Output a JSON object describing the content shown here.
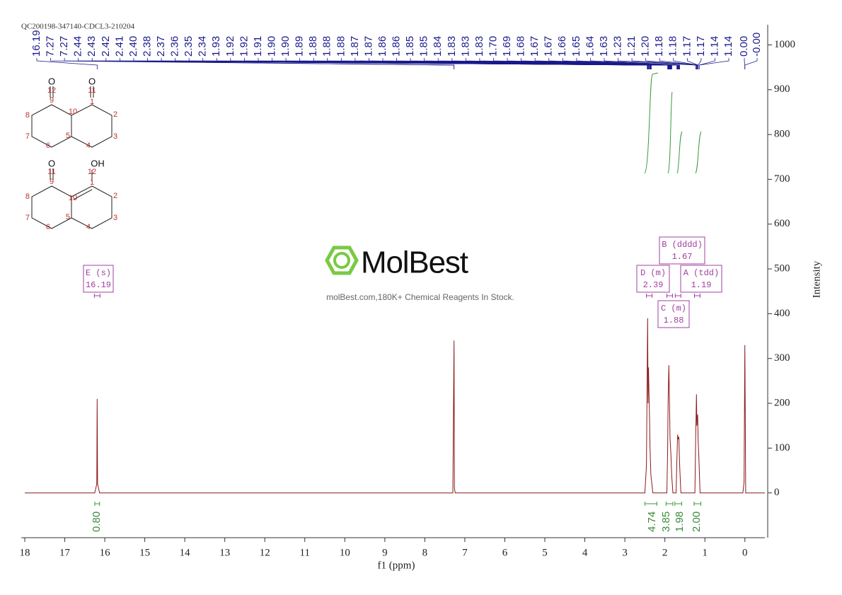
{
  "chart_data": {
    "type": "line",
    "title": "QC200198-347140-CDCL3-210204",
    "x_label": "f1 (ppm)",
    "y_label": "Intensity",
    "xlim": [
      18,
      -0.5
    ],
    "xticks": [
      18,
      17,
      16,
      15,
      14,
      13,
      12,
      11,
      10,
      9,
      8,
      7,
      6,
      5,
      4,
      3,
      2,
      1,
      0
    ],
    "ylim": [
      -100,
      1045
    ],
    "yticks": [
      0,
      100,
      200,
      300,
      400,
      500,
      600,
      700,
      800,
      900,
      1000
    ],
    "series": [
      {
        "name": "spectrum",
        "color": "#8b1a1a",
        "x": [
          18,
          16.25,
          16.2,
          16.19,
          16.18,
          16.13,
          7.3,
          7.27,
          7.26,
          7.24,
          2.5,
          2.46,
          2.44,
          2.43,
          2.42,
          2.41,
          2.4,
          2.38,
          2.37,
          2.35,
          2.3,
          1.95,
          1.93,
          1.92,
          1.9,
          1.88,
          1.87,
          1.85,
          1.83,
          1.8,
          1.72,
          1.7,
          1.68,
          1.67,
          1.65,
          1.63,
          1.6,
          1.25,
          1.23,
          1.21,
          1.2,
          1.18,
          1.17,
          1.15,
          1.12,
          0.05,
          0.02,
          0.0,
          -0.02,
          -0.5
        ],
        "values": [
          0,
          0,
          20,
          210,
          20,
          0,
          0,
          340,
          10,
          0,
          0,
          60,
          290,
          390,
          200,
          280,
          240,
          150,
          100,
          40,
          0,
          0,
          100,
          200,
          285,
          180,
          120,
          90,
          40,
          0,
          0,
          70,
          130,
          120,
          125,
          60,
          0,
          0,
          120,
          220,
          150,
          175,
          120,
          80,
          0,
          0,
          25,
          330,
          0,
          0
        ]
      }
    ],
    "peak_labels": [
      {
        "value": 16.19,
        "label": "16.19"
      },
      {
        "value": 7.27,
        "label": "7.27"
      },
      {
        "value": 7.27,
        "label": "7.27"
      },
      {
        "value": 2.44,
        "label": "2.44"
      },
      {
        "value": 2.43,
        "label": "2.43"
      },
      {
        "value": 2.42,
        "label": "2.42"
      },
      {
        "value": 2.41,
        "label": "2.41"
      },
      {
        "value": 2.4,
        "label": "2.40"
      },
      {
        "value": 2.38,
        "label": "2.38"
      },
      {
        "value": 2.37,
        "label": "2.37"
      },
      {
        "value": 2.36,
        "label": "2.36"
      },
      {
        "value": 2.35,
        "label": "2.35"
      },
      {
        "value": 2.34,
        "label": "2.34"
      },
      {
        "value": 1.93,
        "label": "1.93"
      },
      {
        "value": 1.92,
        "label": "1.92"
      },
      {
        "value": 1.92,
        "label": "1.92"
      },
      {
        "value": 1.91,
        "label": "1.91"
      },
      {
        "value": 1.9,
        "label": "1.90"
      },
      {
        "value": 1.9,
        "label": "1.90"
      },
      {
        "value": 1.89,
        "label": "1.89"
      },
      {
        "value": 1.88,
        "label": "1.88"
      },
      {
        "value": 1.88,
        "label": "1.88"
      },
      {
        "value": 1.88,
        "label": "1.88"
      },
      {
        "value": 1.87,
        "label": "1.87"
      },
      {
        "value": 1.87,
        "label": "1.87"
      },
      {
        "value": 1.86,
        "label": "1.86"
      },
      {
        "value": 1.86,
        "label": "1.86"
      },
      {
        "value": 1.85,
        "label": "1.85"
      },
      {
        "value": 1.85,
        "label": "1.85"
      },
      {
        "value": 1.84,
        "label": "1.84"
      },
      {
        "value": 1.83,
        "label": "1.83"
      },
      {
        "value": 1.83,
        "label": "1.83"
      },
      {
        "value": 1.83,
        "label": "1.83"
      },
      {
        "value": 1.7,
        "label": "1.70"
      },
      {
        "value": 1.69,
        "label": "1.69"
      },
      {
        "value": 1.68,
        "label": "1.68"
      },
      {
        "value": 1.67,
        "label": "1.67"
      },
      {
        "value": 1.67,
        "label": "1.67"
      },
      {
        "value": 1.66,
        "label": "1.66"
      },
      {
        "value": 1.65,
        "label": "1.65"
      },
      {
        "value": 1.64,
        "label": "1.64"
      },
      {
        "value": 1.63,
        "label": "1.63"
      },
      {
        "value": 1.23,
        "label": "1.23"
      },
      {
        "value": 1.21,
        "label": "1.21"
      },
      {
        "value": 1.2,
        "label": "1.20"
      },
      {
        "value": 1.18,
        "label": "1.18"
      },
      {
        "value": 1.18,
        "label": "1.18"
      },
      {
        "value": 1.17,
        "label": "1.17"
      },
      {
        "value": 1.17,
        "label": "1.17"
      },
      {
        "value": 1.14,
        "label": "1.14"
      },
      {
        "value": 1.14,
        "label": "1.14"
      },
      {
        "value": 0.0,
        "label": "0.00"
      },
      {
        "value": 0.0,
        "label": "-0.00"
      }
    ],
    "multiplets": [
      {
        "name": "E (s)",
        "shift": {
          "value": 16.19,
          "label": "16.19"
        }
      },
      {
        "name": "D (m)",
        "shift": {
          "value": 2.39,
          "label": "2.39"
        }
      },
      {
        "name": "C (m)",
        "shift": {
          "value": 1.88,
          "label": "1.88"
        }
      },
      {
        "name": "B (dddd)",
        "shift": {
          "value": 1.67,
          "label": "1.67"
        }
      },
      {
        "name": "A (tdd)",
        "shift": {
          "value": 1.19,
          "label": "1.19"
        }
      }
    ],
    "integrals": [
      {
        "range": [
          16.25,
          16.13
        ],
        "value": 0.8,
        "label": "0.80"
      },
      {
        "range": [
          2.5,
          2.2
        ],
        "value": 4.74,
        "label": "4.74"
      },
      {
        "range": [
          1.97,
          1.8
        ],
        "value": 3.85,
        "label": "3.85"
      },
      {
        "range": [
          1.75,
          1.58
        ],
        "value": 1.98,
        "label": "1.98"
      },
      {
        "range": [
          1.27,
          1.1
        ],
        "value": 2.0,
        "label": "2.00"
      }
    ]
  },
  "structures": [
    {
      "atoms": [
        "O",
        "12",
        "9",
        "10",
        "O",
        "11",
        "1",
        "2",
        "3",
        "4",
        "5",
        "6",
        "7",
        "8"
      ]
    },
    {
      "atoms": [
        "O",
        "11",
        "9",
        "10",
        "OH",
        "12",
        "1",
        "2",
        "3",
        "4",
        "5",
        "6",
        "7",
        "8"
      ]
    }
  ],
  "watermark": {
    "brand": "MolBest",
    "tagline": "molBest.com,180K+ Chemical Reagents In Stock."
  }
}
